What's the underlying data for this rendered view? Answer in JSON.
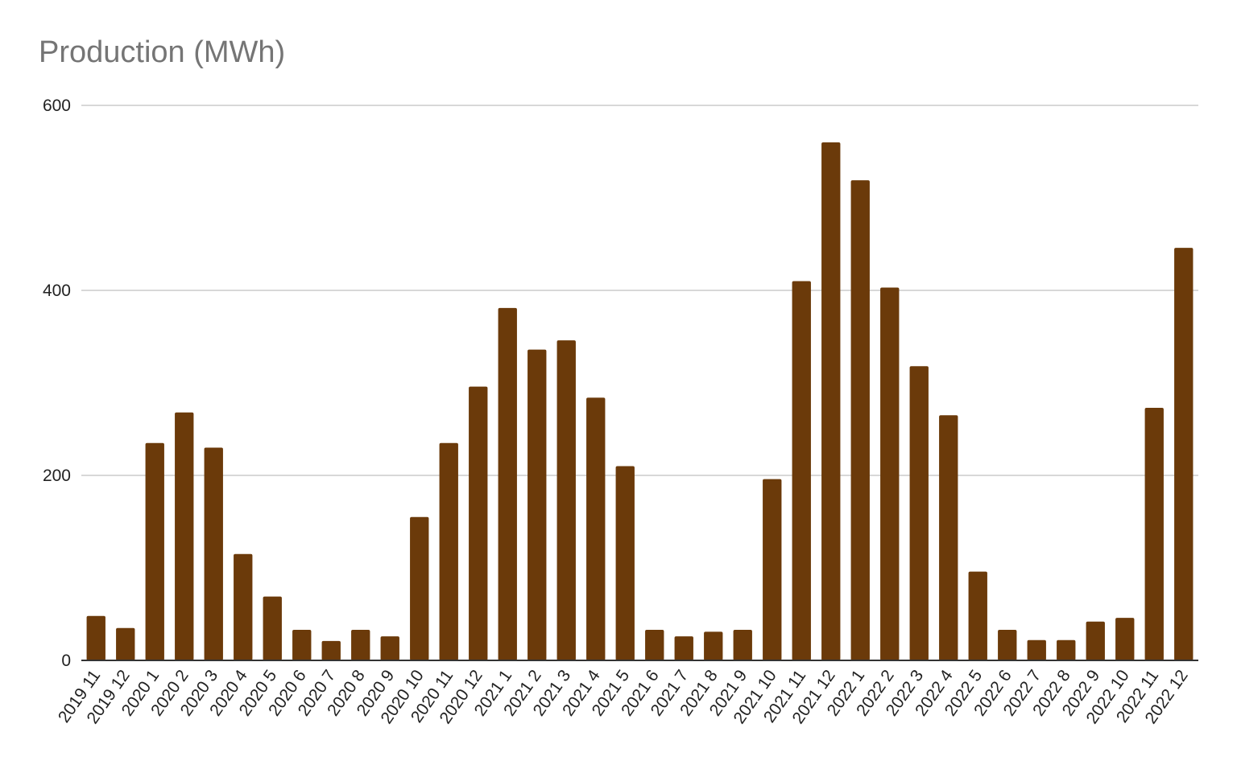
{
  "chart_data": {
    "type": "bar",
    "title": "Production (MWh)",
    "xlabel": "",
    "ylabel": "",
    "ylim": [
      0,
      600
    ],
    "yticks": [
      0,
      200,
      400,
      600
    ],
    "grid": true,
    "bar_color": "#6b3a0a",
    "categories": [
      "2019 11",
      "2019 12",
      "2020 1",
      "2020 2",
      "2020 3",
      "2020 4",
      "2020 5",
      "2020 6",
      "2020 7",
      "2020 8",
      "2020 9",
      "2020 10",
      "2020 11",
      "2020 12",
      "2021 1",
      "2021 2",
      "2021 3",
      "2021 4",
      "2021 5",
      "2021 6",
      "2021 7",
      "2021 8",
      "2021 9",
      "2021 10",
      "2021 11",
      "2021 12",
      "2022 1",
      "2022 2",
      "2022 3",
      "2022 4",
      "2022 5",
      "2022 6",
      "2022 7",
      "2022 8",
      "2022 9",
      "2022 10",
      "2022 11",
      "2022 12"
    ],
    "values": [
      48,
      35,
      235,
      268,
      230,
      115,
      69,
      33,
      21,
      33,
      26,
      155,
      235,
      296,
      381,
      336,
      346,
      284,
      210,
      33,
      26,
      31,
      33,
      196,
      410,
      560,
      519,
      403,
      318,
      265,
      96,
      33,
      22,
      22,
      42,
      46,
      273,
      446
    ]
  }
}
